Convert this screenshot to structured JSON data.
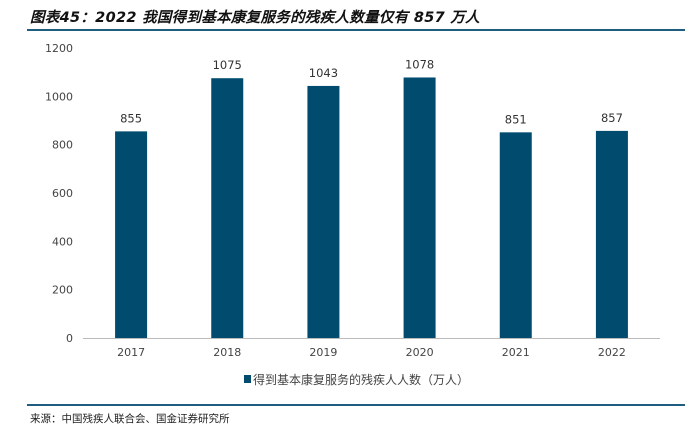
{
  "title": "图表45：2022 我国得到基本康复服务的残疾人数量仅有 857 万人",
  "source": "来源：中国残疾人联合会、国金证券研究所",
  "chart_data": {
    "type": "bar",
    "categories": [
      "2017",
      "2018",
      "2019",
      "2020",
      "2021",
      "2022"
    ],
    "series": [
      {
        "name": "得到基本康复服务的残疾人人数（万人）",
        "values": [
          855,
          1075,
          1043,
          1078,
          851,
          857
        ]
      }
    ],
    "ylim": [
      0,
      1200
    ],
    "yticks": [
      0,
      200,
      400,
      600,
      800,
      1000,
      1200
    ],
    "grid": false,
    "legend": "bottom",
    "bar_color": "#004b6e"
  }
}
